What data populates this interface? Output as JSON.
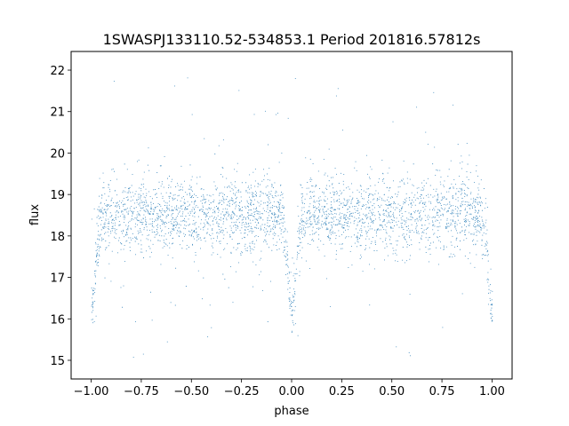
{
  "chart_data": {
    "type": "scatter",
    "title": "1SWASPJ133110.52-534853.1 Period 201816.57812s",
    "xlabel": "phase",
    "ylabel": "flux",
    "xlim": [
      -1.1,
      1.1
    ],
    "ylim": [
      14.55,
      22.45
    ],
    "x_ticks": [
      -1.0,
      -0.75,
      -0.5,
      -0.25,
      0.0,
      0.25,
      0.5,
      0.75,
      1.0
    ],
    "x_tick_labels": [
      "−1.00",
      "−0.75",
      "−0.50",
      "−0.25",
      "0.00",
      "0.25",
      "0.50",
      "0.75",
      "1.00"
    ],
    "y_ticks": [
      15,
      16,
      17,
      18,
      19,
      20,
      21,
      22
    ],
    "y_tick_labels": [
      "15",
      "16",
      "17",
      "18",
      "19",
      "20",
      "21",
      "22"
    ],
    "marker_color": "#1f77b4",
    "grid": false,
    "series": [
      {
        "phase_range": [
          -1.0,
          1.0
        ],
        "baseline_flux": 18.5,
        "band_spread": 0.45,
        "primary_eclipse_min_flux": 16.3,
        "eclipse_phases": [
          -1.0,
          0.0,
          1.0
        ],
        "point_count": 9000,
        "binned_mean": [
          {
            "phase": -1.0,
            "flux": 16.6
          },
          {
            "phase": -0.95,
            "flux": 18.2
          },
          {
            "phase": -0.85,
            "flux": 18.6
          },
          {
            "phase": -0.75,
            "flux": 18.55
          },
          {
            "phase": -0.6,
            "flux": 18.4
          },
          {
            "phase": -0.5,
            "flux": 18.35
          },
          {
            "phase": -0.35,
            "flux": 18.55
          },
          {
            "phase": -0.25,
            "flux": 18.55
          },
          {
            "phase": -0.15,
            "flux": 18.45
          },
          {
            "phase": -0.05,
            "flux": 18.0
          },
          {
            "phase": 0.0,
            "flux": 16.4
          },
          {
            "phase": 0.05,
            "flux": 18.0
          },
          {
            "phase": 0.15,
            "flux": 18.5
          },
          {
            "phase": 0.25,
            "flux": 18.55
          },
          {
            "phase": 0.35,
            "flux": 18.5
          },
          {
            "phase": 0.45,
            "flux": 18.35
          },
          {
            "phase": 0.55,
            "flux": 18.5
          },
          {
            "phase": 0.7,
            "flux": 18.65
          },
          {
            "phase": 0.85,
            "flux": 18.55
          },
          {
            "phase": 0.95,
            "flux": 18.2
          },
          {
            "phase": 1.0,
            "flux": 16.6
          }
        ]
      }
    ]
  }
}
